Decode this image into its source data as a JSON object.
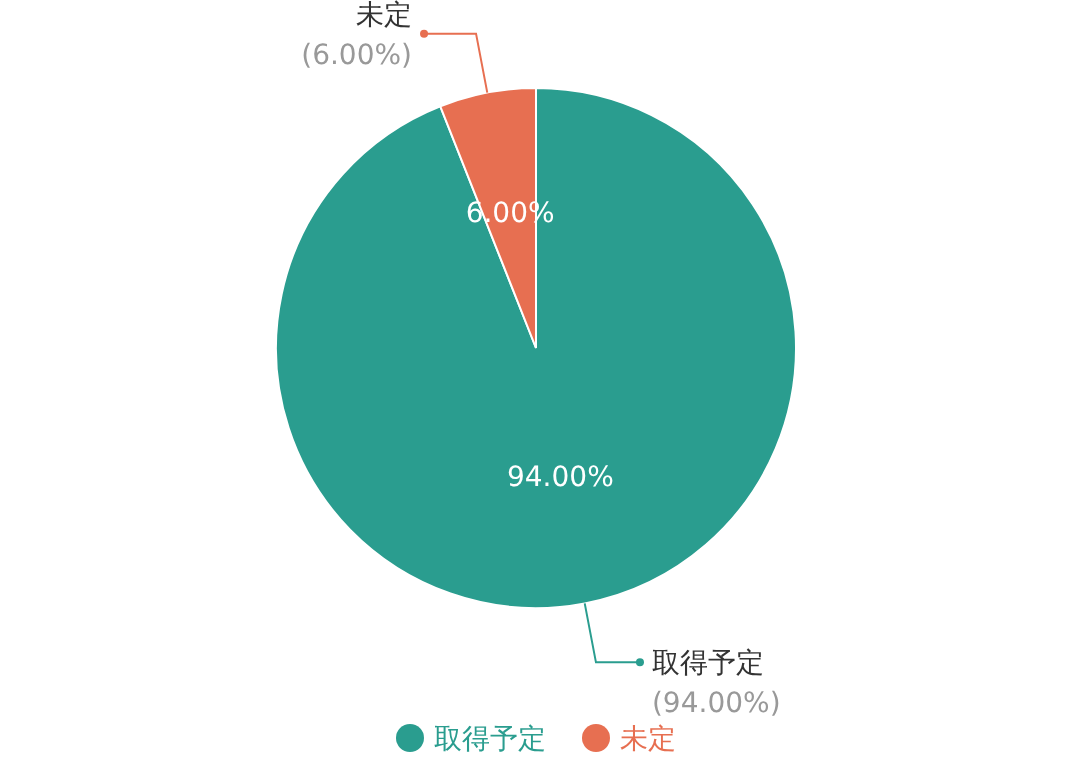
{
  "chart_data": {
    "type": "pie",
    "categories": [
      "取得予定",
      "未定"
    ],
    "values": [
      94,
      6
    ],
    "colors": [
      "#2a9d8f",
      "#e76f51"
    ],
    "value_labels": [
      "94.00%",
      "6.00%"
    ],
    "annotations": [
      "(94.00%)",
      "(6.00%)"
    ],
    "legend": "bottom"
  }
}
